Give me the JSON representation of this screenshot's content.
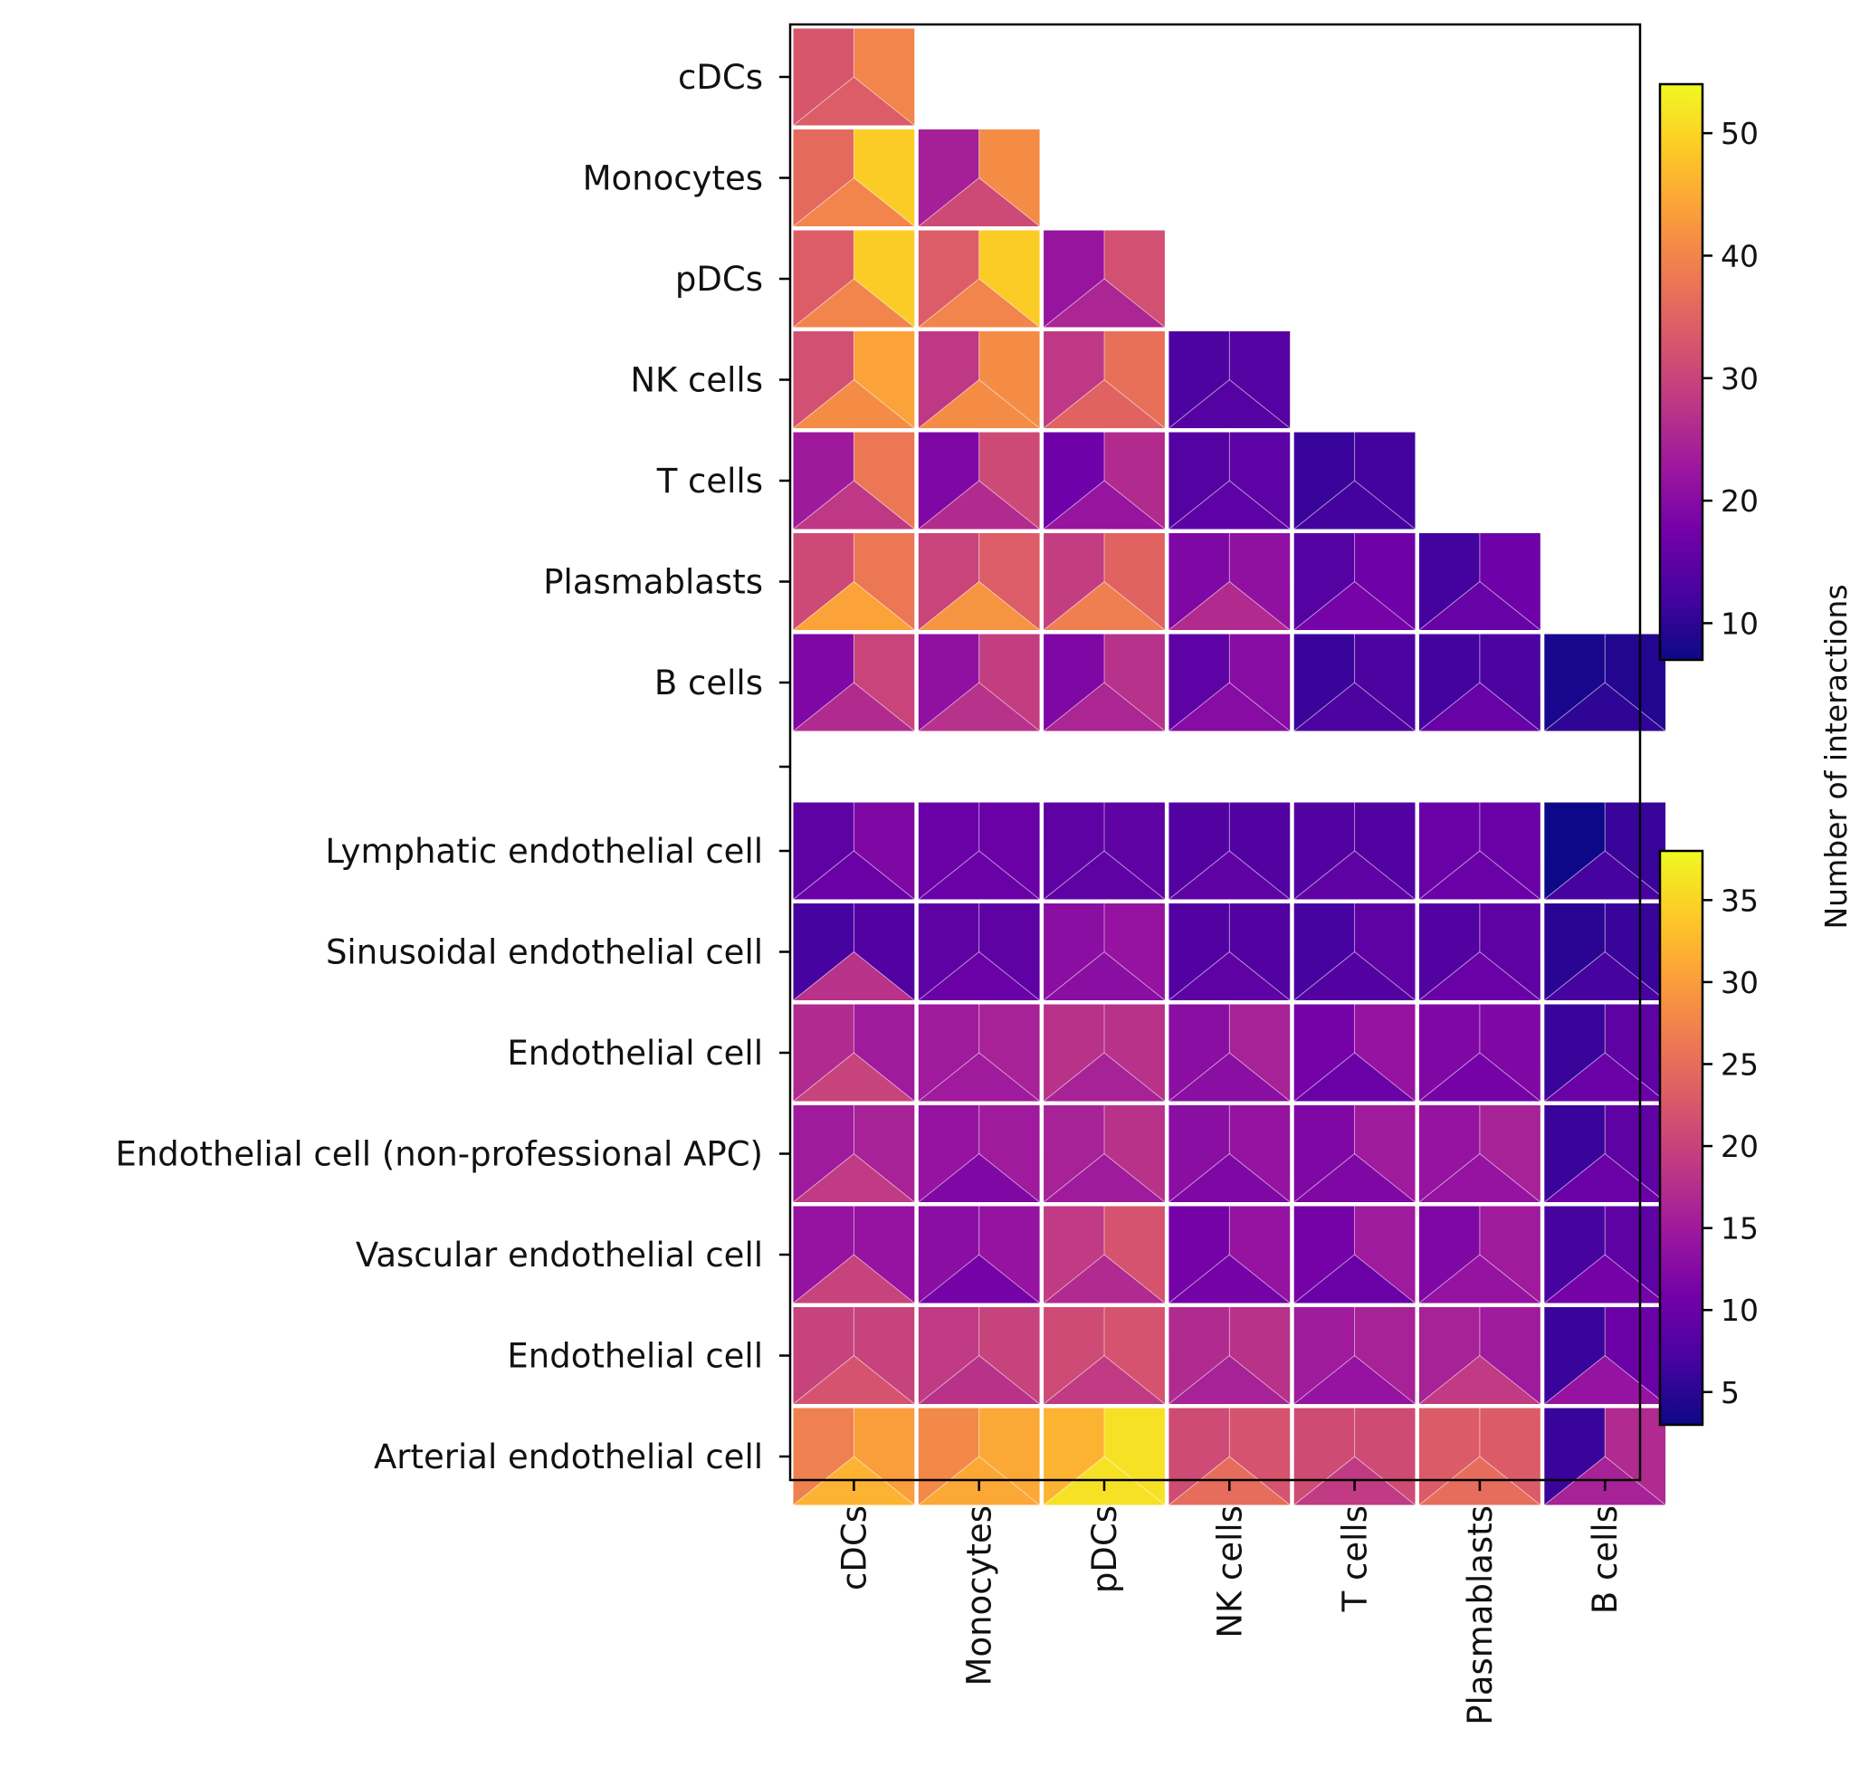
{
  "chart_data": {
    "type": "heatmap",
    "cell_glyph": "three-part cell: left half-top, right half-top, bottom triangle",
    "upper_block": {
      "rows": [
        "cDCs",
        "Monocytes",
        "pDCs",
        "NK cells",
        "T cells",
        "Plasmablasts",
        "B cells"
      ],
      "columns": [
        "cDCs",
        "Monocytes",
        "pDCs",
        "NK cells",
        "T cells",
        "Plasmablasts",
        "B cells"
      ],
      "layout": "lower-triangular",
      "values": [
        [
          [
            33,
            40,
            34
          ]
        ],
        [
          [
            36,
            49,
            40
          ],
          [
            24,
            41,
            31
          ]
        ],
        [
          [
            34,
            49,
            40
          ],
          [
            34,
            49,
            40
          ],
          [
            22,
            32,
            25
          ]
        ],
        [
          [
            32,
            44,
            41
          ],
          [
            28,
            41,
            41
          ],
          [
            28,
            37,
            35
          ],
          [
            13,
            14,
            14
          ]
        ],
        [
          [
            23,
            38,
            28
          ],
          [
            19,
            31,
            26
          ],
          [
            17,
            26,
            22
          ],
          [
            14,
            15,
            15
          ],
          [
            11,
            12,
            12
          ]
        ],
        [
          [
            31,
            38,
            44
          ],
          [
            30,
            34,
            42
          ],
          [
            29,
            35,
            39
          ],
          [
            19,
            21,
            26
          ],
          [
            14,
            17,
            18
          ],
          [
            12,
            17,
            16
          ]
        ],
        [
          [
            19,
            30,
            26
          ],
          [
            21,
            29,
            27
          ],
          [
            19,
            27,
            25
          ],
          [
            15,
            20,
            20
          ],
          [
            11,
            13,
            13
          ],
          [
            12,
            13,
            16
          ],
          [
            8,
            9,
            10
          ]
        ]
      ],
      "colorbar": {
        "label": "Number of interactions",
        "ticks": [
          10,
          20,
          30,
          40,
          50
        ],
        "range": [
          7,
          54
        ]
      }
    },
    "lower_block": {
      "rows": [
        "Lymphatic endothelial cell",
        "Sinusoidal endothelial cell",
        "Endothelial  cell",
        "Endothelial cell (non-professional APC)",
        "Vascular endothelial cell",
        "Endothelial cell",
        "Arterial endothelial cell"
      ],
      "columns": [
        "cDCs",
        "Monocytes",
        "pDCs",
        "NK cells",
        "T cells",
        "Plasmablasts",
        "B cells"
      ],
      "values": [
        [
          [
            9,
            12,
            10
          ],
          [
            10,
            10,
            10
          ],
          [
            9,
            9,
            9
          ],
          [
            8,
            8,
            9
          ],
          [
            8,
            8,
            9
          ],
          [
            10,
            10,
            10
          ],
          [
            3,
            6,
            7
          ]
        ],
        [
          [
            7,
            8,
            18
          ],
          [
            9,
            9,
            10
          ],
          [
            13,
            14,
            13
          ],
          [
            8,
            8,
            9
          ],
          [
            7,
            9,
            8
          ],
          [
            8,
            9,
            10
          ],
          [
            5,
            6,
            7
          ]
        ],
        [
          [
            17,
            15,
            20
          ],
          [
            15,
            16,
            15
          ],
          [
            18,
            18,
            16
          ],
          [
            13,
            16,
            13
          ],
          [
            11,
            14,
            10
          ],
          [
            12,
            12,
            11
          ],
          [
            6,
            9,
            10
          ]
        ],
        [
          [
            15,
            16,
            19
          ],
          [
            14,
            15,
            12
          ],
          [
            16,
            18,
            15
          ],
          [
            13,
            14,
            12
          ],
          [
            12,
            15,
            12
          ],
          [
            14,
            16,
            14
          ],
          [
            6,
            9,
            10
          ]
        ],
        [
          [
            14,
            14,
            20
          ],
          [
            13,
            14,
            11
          ],
          [
            19,
            22,
            17
          ],
          [
            11,
            14,
            11
          ],
          [
            11,
            15,
            10
          ],
          [
            12,
            15,
            14
          ],
          [
            7,
            9,
            11
          ]
        ],
        [
          [
            20,
            20,
            22
          ],
          [
            19,
            20,
            18
          ],
          [
            21,
            22,
            19
          ],
          [
            17,
            18,
            16
          ],
          [
            15,
            16,
            14
          ],
          [
            16,
            15,
            19
          ],
          [
            6,
            10,
            14
          ]
        ],
        [
          [
            27,
            30,
            32
          ],
          [
            28,
            31,
            31
          ],
          [
            32,
            36,
            36
          ],
          [
            21,
            22,
            25
          ],
          [
            21,
            21,
            19
          ],
          [
            23,
            23,
            25
          ],
          [
            6,
            17,
            16
          ]
        ]
      ],
      "colorbar": {
        "label": "Number of interactions",
        "ticks": [
          5,
          10,
          15,
          20,
          25,
          30,
          35
        ],
        "range": [
          3,
          38
        ]
      }
    },
    "colormap": "plasma",
    "colormap_stops": [
      "#0d0887",
      "#46039f",
      "#7201a8",
      "#9c179e",
      "#bd3786",
      "#d8576b",
      "#ed7953",
      "#fb9f3a",
      "#fdca26",
      "#f0f921"
    ]
  }
}
